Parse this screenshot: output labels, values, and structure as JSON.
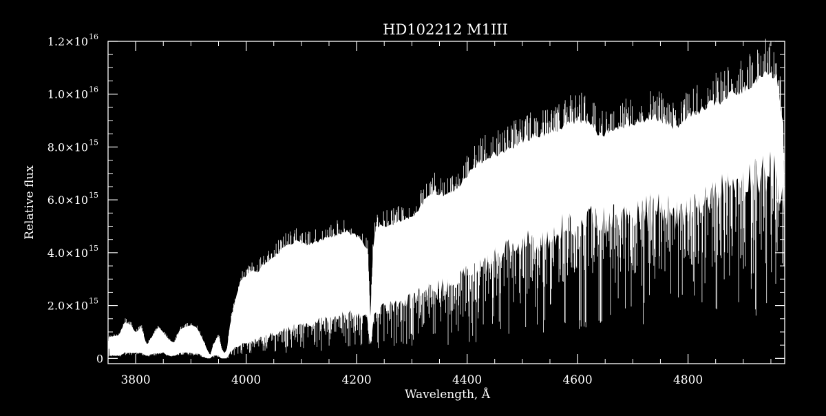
{
  "chart_data": {
    "type": "line",
    "title": "HD102212   M1III",
    "xlabel": "Wavelength, Å",
    "ylabel": "Relative flux",
    "xlim": [
      3750,
      4975
    ],
    "ylim": [
      -200000000000000.0,
      1.2e+16
    ],
    "grid": false,
    "legend": "none",
    "colors": {
      "background": "#000000",
      "foreground": "#ffffff"
    },
    "x_ticks": [
      {
        "value": 3800,
        "label": "3800"
      },
      {
        "value": 4000,
        "label": "4000"
      },
      {
        "value": 4200,
        "label": "4200"
      },
      {
        "value": 4400,
        "label": "4400"
      },
      {
        "value": 4600,
        "label": "4600"
      },
      {
        "value": 4800,
        "label": "4800"
      }
    ],
    "y_ticks": [
      {
        "value": 0,
        "mantissa": "0",
        "exponent": ""
      },
      {
        "value": 2000000000000000.0,
        "mantissa": "2.0×10",
        "exponent": "15"
      },
      {
        "value": 4000000000000000.0,
        "mantissa": "4.0×10",
        "exponent": "15"
      },
      {
        "value": 6000000000000000.0,
        "mantissa": "6.0×10",
        "exponent": "15"
      },
      {
        "value": 8000000000000000.0,
        "mantissa": "8.0×10",
        "exponent": "15"
      },
      {
        "value": 1e+16,
        "mantissa": "1.0×10",
        "exponent": "16"
      },
      {
        "value": 1.2e+16,
        "mantissa": "1.2×10",
        "exponent": "16"
      }
    ],
    "series": [
      {
        "x": [
          3750,
          3770,
          3780,
          3790,
          3800,
          3810,
          3820,
          3840,
          3850,
          3860,
          3870,
          3880,
          3890,
          3900,
          3910,
          3920,
          3930,
          3935,
          3940,
          3950,
          3955,
          3960,
          3965,
          3970,
          3980,
          3990,
          4000,
          4010,
          4020,
          4030,
          4040,
          4050,
          4060,
          4070,
          4080,
          4090,
          4100,
          4120,
          4140,
          4160,
          4180,
          4200,
          4220,
          4225,
          4230,
          4235,
          4240,
          4260,
          4280,
          4300,
          4320,
          4340,
          4360,
          4380,
          4400,
          4420,
          4440,
          4460,
          4480,
          4500,
          4520,
          4540,
          4560,
          4580,
          4600,
          4620,
          4640,
          4660,
          4680,
          4700,
          4720,
          4740,
          4760,
          4780,
          4800,
          4820,
          4840,
          4860,
          4880,
          4900,
          4920,
          4940,
          4960,
          4975
        ],
        "upper": [
          800000000000000.0,
          900000000000000.0,
          1400000000000000.0,
          1300000000000000.0,
          1000000000000000.0,
          1200000000000000.0,
          500000000000000.0,
          1200000000000000.0,
          1000000000000000.0,
          700000000000000.0,
          600000000000000.0,
          1100000000000000.0,
          1200000000000000.0,
          1300000000000000.0,
          1200000000000000.0,
          800000000000000.0,
          300000000000000.0,
          100000000000000.0,
          500000000000000.0,
          900000000000000.0,
          400000000000000.0,
          200000000000000.0,
          300000000000000.0,
          1200000000000000.0,
          2200000000000000.0,
          3000000000000000.0,
          3200000000000000.0,
          3400000000000000.0,
          3300000000000000.0,
          3600000000000000.0,
          3700000000000000.0,
          3900000000000000.0,
          4100000000000000.0,
          4300000000000000.0,
          4400000000000000.0,
          4500000000000000.0,
          4400000000000000.0,
          4400000000000000.0,
          4600000000000000.0,
          4700000000000000.0,
          4900000000000000.0,
          4700000000000000.0,
          4200000000000000.0,
          1500000000000000.0,
          4300000000000000.0,
          5000000000000000.0,
          5100000000000000.0,
          5100000000000000.0,
          5300000000000000.0,
          5400000000000000.0,
          6000000000000000.0,
          6400000000000000.0,
          6300000000000000.0,
          6500000000000000.0,
          7000000000000000.0,
          7500000000000000.0,
          7800000000000000.0,
          7900000000000000.0,
          8100000000000000.0,
          8400000000000000.0,
          8500000000000000.0,
          8600000000000000.0,
          8800000000000000.0,
          9000000000000000.0,
          9200000000000000.0,
          9100000000000000.0,
          8600000000000000.0,
          8700000000000000.0,
          8900000000000000.0,
          9000000000000000.0,
          9200000000000000.0,
          9300000000000000.0,
          9100000000000000.0,
          8800000000000000.0,
          9300000000000000.0,
          9500000000000000.0,
          9800000000000000.0,
          9900000000000000.0,
          1.02e+16,
          1.03e+16,
          1.06e+16,
          1.1e+16,
          1.08e+16,
          8600000000000000.0
        ],
        "lower": [
          100000000000000.0,
          100000000000000.0,
          200000000000000.0,
          200000000000000.0,
          200000000000000.0,
          200000000000000.0,
          100000000000000.0,
          200000000000000.0,
          200000000000000.0,
          100000000000000.0,
          100000000000000.0,
          200000000000000.0,
          200000000000000.0,
          200000000000000.0,
          200000000000000.0,
          100000000000000.0,
          0.0,
          0.0,
          100000000000000.0,
          100000000000000.0,
          0.0,
          0.0,
          0.0,
          200000000000000.0,
          400000000000000.0,
          500000000000000.0,
          600000000000000.0,
          600000000000000.0,
          700000000000000.0,
          800000000000000.0,
          800000000000000.0,
          900000000000000.0,
          1000000000000000.0,
          1000000000000000.0,
          1100000000000000.0,
          1200000000000000.0,
          1200000000000000.0,
          1300000000000000.0,
          1400000000000000.0,
          1500000000000000.0,
          1600000000000000.0,
          1600000000000000.0,
          1500000000000000.0,
          300000000000000.0,
          1500000000000000.0,
          1700000000000000.0,
          1800000000000000.0,
          1900000000000000.0,
          2000000000000000.0,
          2200000000000000.0,
          2400000000000000.0,
          2600000000000000.0,
          2700000000000000.0,
          2900000000000000.0,
          3100000000000000.0,
          3400000000000000.0,
          3600000000000000.0,
          3800000000000000.0,
          4000000000000000.0,
          4200000000000000.0,
          4400000000000000.0,
          4500000000000000.0,
          4700000000000000.0,
          4800000000000000.0,
          5000000000000000.0,
          5100000000000000.0,
          5000000000000000.0,
          5100000000000000.0,
          5200000000000000.0,
          5300000000000000.0,
          5400000000000000.0,
          5500000000000000.0,
          5500000000000000.0,
          5400000000000000.0,
          5700000000000000.0,
          5800000000000000.0,
          6000000000000000.0,
          6100000000000000.0,
          6300000000000000.0,
          6400000000000000.0,
          6600000000000000.0,
          6900000000000000.0,
          6800000000000000.0,
          5500000000000000.0
        ],
        "floor": [
          200000000000000.0,
          100000000000000.0,
          200000000000000.0,
          200000000000000.0,
          200000000000000.0,
          200000000000000.0,
          100000000000000.0,
          100000000000000.0,
          200000000000000.0,
          100000000000000.0,
          100000000000000.0,
          100000000000000.0,
          100000000000000.0,
          100000000000000.0,
          100000000000000.0,
          0.0,
          0.0,
          0.0,
          0.0,
          0.0,
          0.0,
          0.0,
          0.0,
          0.0,
          100000000000000.0,
          100000000000000.0,
          100000000000000.0,
          100000000000000.0,
          100000000000000.0,
          200000000000000.0,
          200000000000000.0,
          200000000000000.0,
          200000000000000.0,
          200000000000000.0,
          200000000000000.0,
          200000000000000.0,
          200000000000000.0,
          200000000000000.0,
          300000000000000.0,
          300000000000000.0,
          300000000000000.0,
          300000000000000.0,
          200000000000000.0,
          100000000000000.0,
          300000000000000.0,
          300000000000000.0,
          300000000000000.0,
          300000000000000.0,
          400000000000000.0,
          400000000000000.0,
          400000000000000.0,
          500000000000000.0,
          500000000000000.0,
          500000000000000.0,
          600000000000000.0,
          600000000000000.0,
          700000000000000.0,
          700000000000000.0,
          800000000000000.0,
          800000000000000.0,
          900000000000000.0,
          900000000000000.0,
          1000000000000000.0,
          1000000000000000.0,
          1100000000000000.0,
          1100000000000000.0,
          1000000000000000.0,
          1000000000000000.0,
          1100000000000000.0,
          1100000000000000.0,
          1200000000000000.0,
          1200000000000000.0,
          1200000000000000.0,
          1100000000000000.0,
          1200000000000000.0,
          1300000000000000.0,
          1300000000000000.0,
          1400000000000000.0,
          1400000000000000.0,
          1500000000000000.0,
          1500000000000000.0,
          1600000000000000.0,
          1600000000000000.0,
          1400000000000000.0
        ]
      }
    ]
  }
}
